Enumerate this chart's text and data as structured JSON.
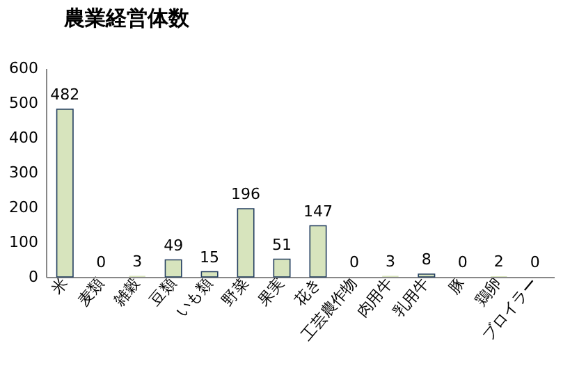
{
  "chart_data": {
    "type": "bar",
    "title": "農業経営体数",
    "categories": [
      "米",
      "麦類",
      "雑穀",
      "豆類",
      "いも類",
      "野菜",
      "果実",
      "花き",
      "工芸農作物",
      "肉用牛",
      "乳用牛",
      "豚",
      "鶏卵",
      "ブロイラー"
    ],
    "values": [
      482,
      0,
      3,
      49,
      15,
      196,
      51,
      147,
      0,
      3,
      8,
      0,
      2,
      0
    ],
    "color": "#d7e4bd",
    "ylim": [
      0,
      600
    ],
    "yticks": [
      0,
      100,
      200,
      300,
      400,
      500,
      600
    ],
    "grid": false,
    "data_labels": true
  }
}
